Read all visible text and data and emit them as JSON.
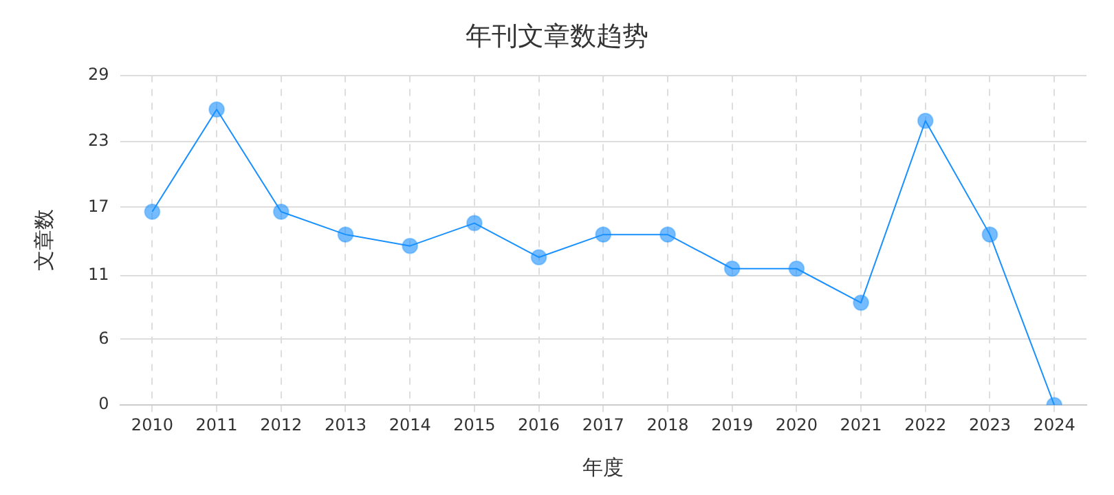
{
  "chart_data": {
    "type": "line",
    "title": "年刊文章数趋势",
    "xlabel": "年度",
    "ylabel": "文章数",
    "categories": [
      "2010",
      "2011",
      "2012",
      "2013",
      "2014",
      "2015",
      "2016",
      "2017",
      "2018",
      "2019",
      "2020",
      "2021",
      "2022",
      "2023",
      "2024"
    ],
    "series": [
      {
        "color": "#1890ff",
        "values": [
          17,
          26,
          17,
          15,
          14,
          16,
          13,
          15,
          15,
          12,
          12,
          9,
          25,
          15,
          0
        ]
      }
    ],
    "ylim": [
      0,
      29
    ],
    "yticks": [
      0,
      {
        "value": 5.8,
        "label": "6"
      },
      {
        "value": 11.4,
        "label": "11"
      },
      {
        "value": 17.4,
        "label": "17"
      },
      {
        "value": 23.2,
        "label": "23"
      },
      29
    ],
    "grid": true,
    "marker": "circle",
    "line_style": "solid",
    "legend": false
  }
}
